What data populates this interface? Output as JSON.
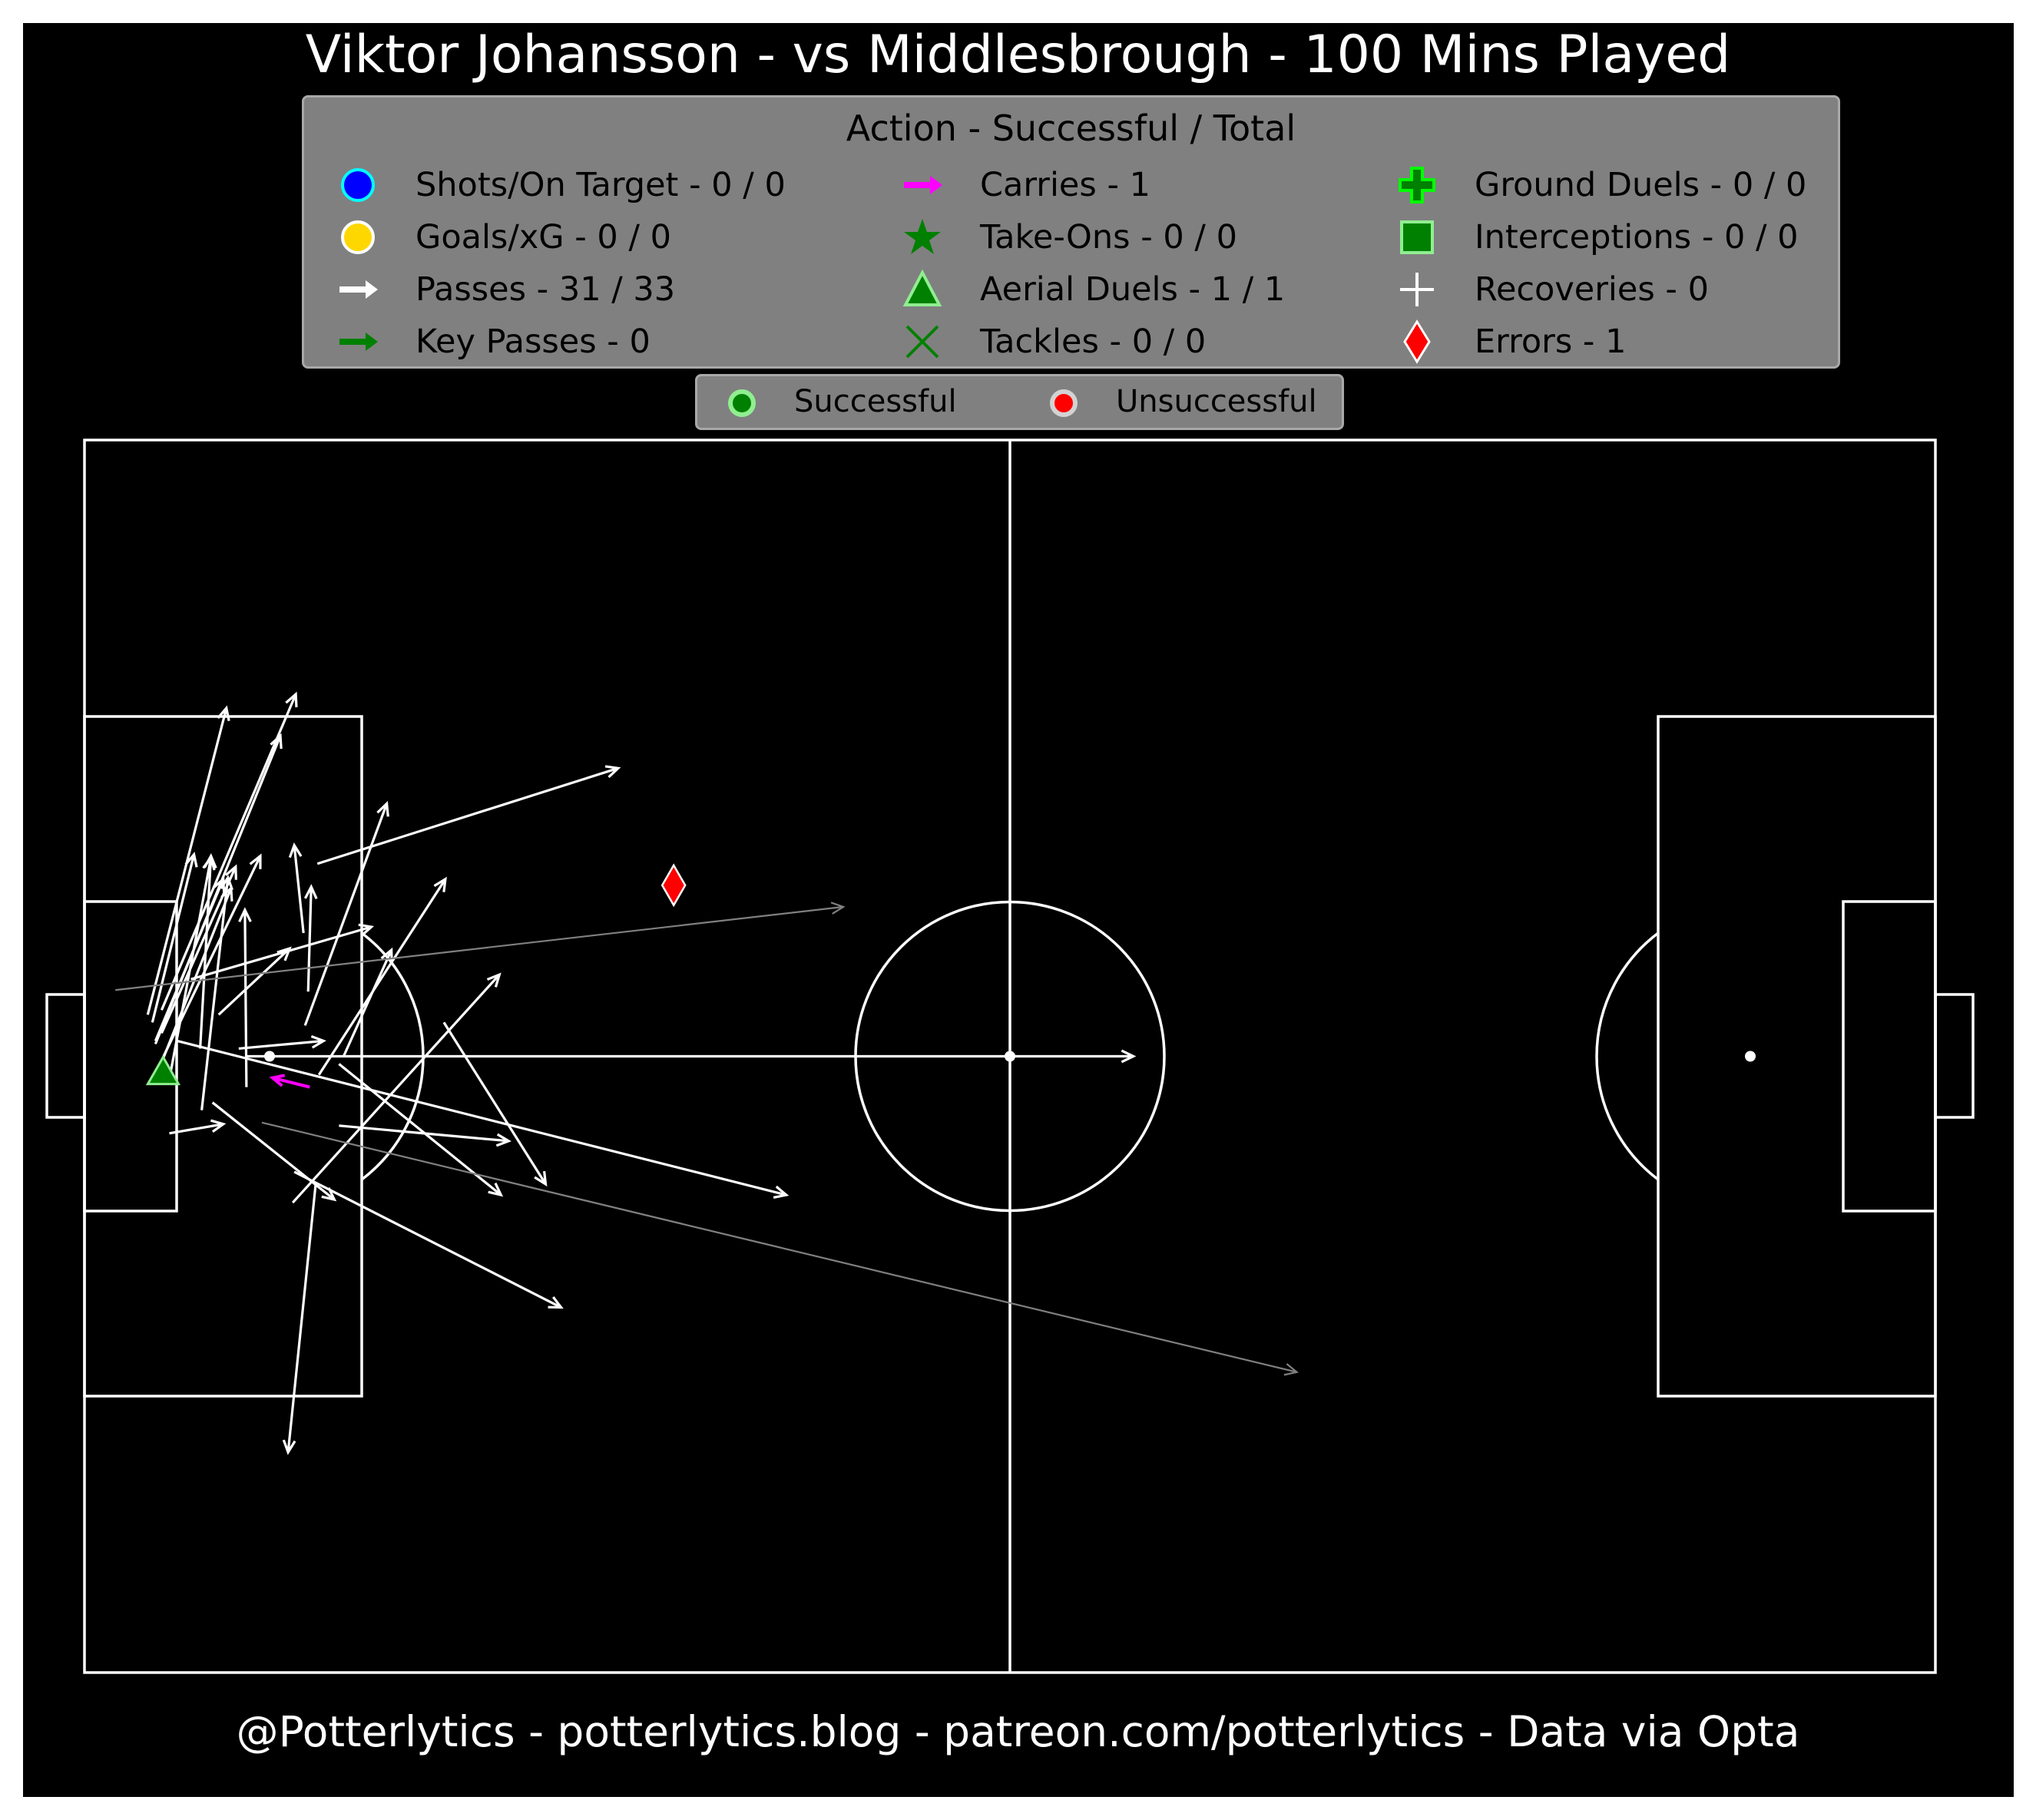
{
  "title": "Viktor Johansson - vs Middlesbrough - 100 Mins Played",
  "footer": "@Potterlytics - potterlytics.blog - patreon.com/potterlytics - Data via Opta",
  "legend": {
    "title": "Action - Successful / Total",
    "items": [
      {
        "label": "Shots/On Target - 0 / 0",
        "icon": "circle",
        "color": "#0000ff",
        "edge": "#00ffff"
      },
      {
        "label": "Goals/xG - 0 / 0",
        "icon": "circle",
        "color": "#ffd700",
        "edge": "#ffffff"
      },
      {
        "label": "Passes - 31 / 33",
        "icon": "arrow",
        "color": "#ffffff"
      },
      {
        "label": "Key Passes - 0",
        "icon": "arrow",
        "color": "#008000"
      },
      {
        "label": "Carries - 1",
        "icon": "arrow",
        "color": "#ff00ff"
      },
      {
        "label": "Take-Ons - 0 / 0",
        "icon": "star",
        "color": "#008000"
      },
      {
        "label": "Aerial Duels - 1 / 1",
        "icon": "triangle",
        "color": "#008000",
        "edge": "#90ee90"
      },
      {
        "label": "Tackles - 0 / 0",
        "icon": "x",
        "color": "#008000"
      },
      {
        "label": "Ground Duels - 0 / 0",
        "icon": "plus-filled",
        "color": "#008000",
        "edge": "#00ff00"
      },
      {
        "label": "Interceptions - 0 / 0",
        "icon": "square",
        "color": "#008000",
        "edge": "#90ee90"
      },
      {
        "label": "Recoveries - 0",
        "icon": "plus",
        "color": "#ffffff"
      },
      {
        "label": "Errors - 1",
        "icon": "diamond",
        "color": "#ff0000",
        "edge": "#ffffff"
      }
    ]
  },
  "outcome_legend": [
    {
      "label": "Successful",
      "color": "#008000",
      "edge": "#90ee90"
    },
    {
      "label": "Unsuccessful",
      "color": "#ff0000",
      "edge": "#d3d3d3"
    }
  ],
  "colors": {
    "background": "#000000",
    "pitch_lines": "#ffffff",
    "pass_complete": "#ffffff",
    "pass_incomplete": "#808080",
    "carry": "#ff00ff",
    "aerial": "#008000",
    "error": "#ff0000"
  },
  "chart_data": {
    "type": "pitch-event-map",
    "pitch": {
      "x_range": [
        0,
        120
      ],
      "y_range": [
        0,
        80
      ],
      "grid": false
    },
    "passes": [
      {
        "x1": 4.1,
        "y1": 42.7,
        "x2": 9.2,
        "y2": 62.6,
        "outcome": "complete"
      },
      {
        "x1": 4.6,
        "y1": 40.8,
        "x2": 12.7,
        "y2": 60.8,
        "outcome": "complete"
      },
      {
        "x1": 5.0,
        "y1": 43.0,
        "x2": 13.7,
        "y2": 63.5,
        "outcome": "complete"
      },
      {
        "x1": 4.8,
        "y1": 39.1,
        "x2": 9.5,
        "y2": 50.9,
        "outcome": "complete"
      },
      {
        "x1": 4.4,
        "y1": 42.2,
        "x2": 7.1,
        "y2": 53.1,
        "outcome": "complete"
      },
      {
        "x1": 5.5,
        "y1": 38.5,
        "x2": 8.2,
        "y2": 52.9,
        "outcome": "complete"
      },
      {
        "x1": 7.5,
        "y1": 40.5,
        "x2": 8.2,
        "y2": 53.0,
        "outcome": "complete"
      },
      {
        "x1": 5.0,
        "y1": 41.5,
        "x2": 9.8,
        "y2": 52.3,
        "outcome": "complete"
      },
      {
        "x1": 4.6,
        "y1": 41.0,
        "x2": 9.0,
        "y2": 51.5,
        "outcome": "complete"
      },
      {
        "x1": 7.6,
        "y1": 36.5,
        "x2": 9.3,
        "y2": 51.6,
        "outcome": "complete"
      },
      {
        "x1": 10.5,
        "y1": 38.0,
        "x2": 10.4,
        "y2": 49.5,
        "outcome": "complete"
      },
      {
        "x1": 4.5,
        "y1": 38.7,
        "x2": 11.4,
        "y2": 53.0,
        "outcome": "complete"
      },
      {
        "x1": 8.7,
        "y1": 42.7,
        "x2": 13.3,
        "y2": 47.0,
        "outcome": "complete"
      },
      {
        "x1": 10.0,
        "y1": 40.5,
        "x2": 15.5,
        "y2": 41.0,
        "outcome": "complete"
      },
      {
        "x1": 6.9,
        "y1": 45.0,
        "x2": 18.6,
        "y2": 48.4,
        "outcome": "complete"
      },
      {
        "x1": 14.5,
        "y1": 44.2,
        "x2": 14.7,
        "y2": 51.0,
        "outcome": "complete"
      },
      {
        "x1": 14.2,
        "y1": 48.0,
        "x2": 13.6,
        "y2": 53.7,
        "outcome": "complete"
      },
      {
        "x1": 14.3,
        "y1": 42.0,
        "x2": 19.6,
        "y2": 56.4,
        "outcome": "complete"
      },
      {
        "x1": 16.8,
        "y1": 40.0,
        "x2": 19.9,
        "y2": 46.9,
        "outcome": "complete"
      },
      {
        "x1": 15.2,
        "y1": 38.8,
        "x2": 23.4,
        "y2": 51.5,
        "outcome": "complete"
      },
      {
        "x1": 13.5,
        "y1": 30.5,
        "x2": 26.9,
        "y2": 45.3,
        "outcome": "complete"
      },
      {
        "x1": 15.1,
        "y1": 52.5,
        "x2": 34.6,
        "y2": 58.7,
        "outcome": "complete"
      },
      {
        "x1": 10.5,
        "y1": 40.0,
        "x2": 68.0,
        "y2": 40.0,
        "outcome": "complete"
      },
      {
        "x1": 23.3,
        "y1": 42.2,
        "x2": 29.9,
        "y2": 31.7,
        "outcome": "complete"
      },
      {
        "x1": 8.3,
        "y1": 37.0,
        "x2": 16.2,
        "y2": 30.7,
        "outcome": "complete"
      },
      {
        "x1": 16.5,
        "y1": 39.5,
        "x2": 27.0,
        "y2": 31.0,
        "outcome": "complete"
      },
      {
        "x1": 16.5,
        "y1": 35.5,
        "x2": 27.5,
        "y2": 34.5,
        "outcome": "complete"
      },
      {
        "x1": 5.5,
        "y1": 35.0,
        "x2": 9.0,
        "y2": 35.6,
        "outcome": "complete"
      },
      {
        "x1": 6.0,
        "y1": 41.0,
        "x2": 45.5,
        "y2": 31.0,
        "outcome": "complete"
      },
      {
        "x1": 13.6,
        "y1": 32.5,
        "x2": 30.9,
        "y2": 23.7,
        "outcome": "complete"
      },
      {
        "x1": 15.0,
        "y1": 31.8,
        "x2": 13.2,
        "y2": 14.3,
        "outcome": "complete"
      },
      {
        "x1": 2.0,
        "y1": 44.3,
        "x2": 49.2,
        "y2": 49.7,
        "outcome": "incomplete"
      },
      {
        "x1": 11.5,
        "y1": 35.7,
        "x2": 78.6,
        "y2": 19.5,
        "outcome": "incomplete"
      }
    ],
    "carries": [
      {
        "x1": 14.6,
        "y1": 38.0,
        "x2": 12.2,
        "y2": 38.6
      }
    ],
    "aerial_duels": [
      {
        "x": 5.1,
        "y": 38.9,
        "outcome": "successful"
      }
    ],
    "errors": [
      {
        "x": 38.2,
        "y": 51.1
      }
    ]
  }
}
